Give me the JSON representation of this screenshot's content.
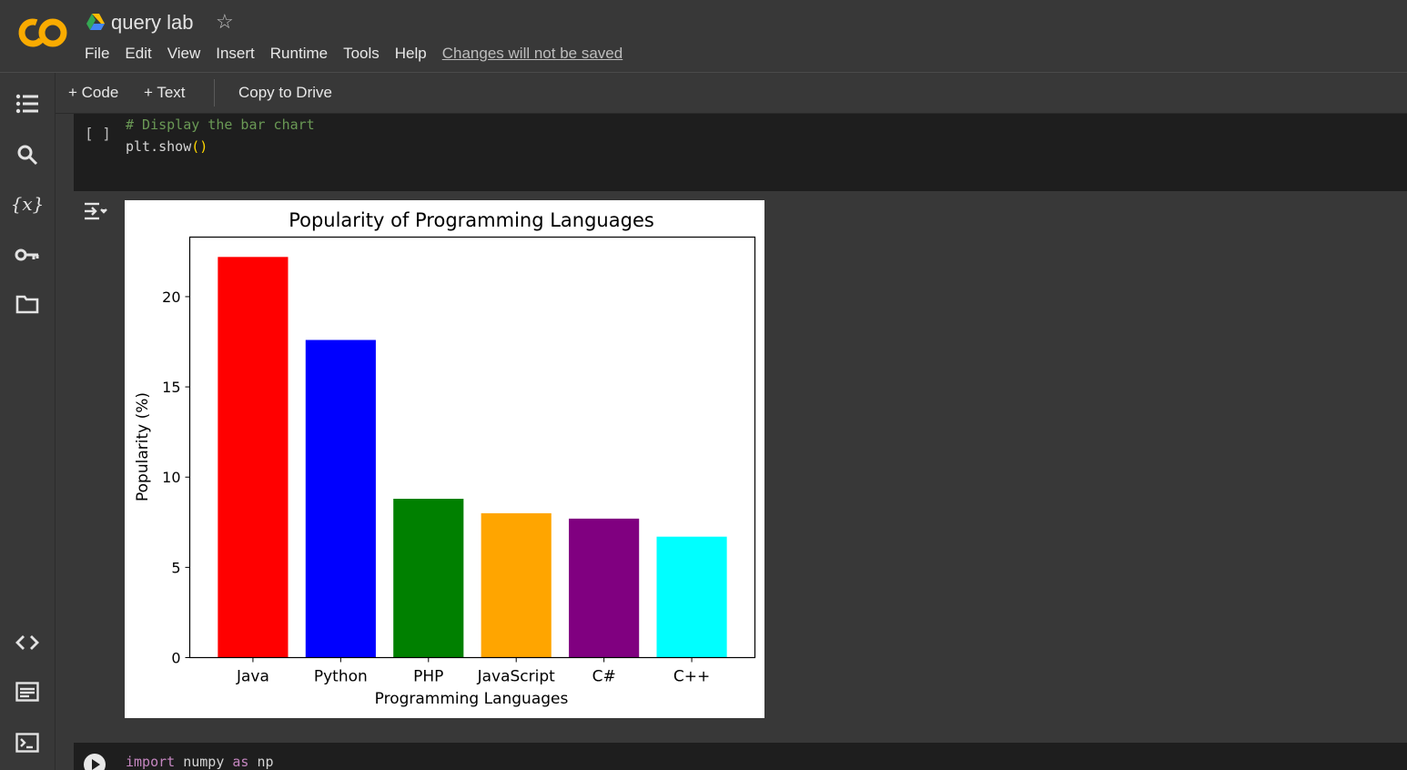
{
  "header": {
    "title": "query lab",
    "menu": [
      "File",
      "Edit",
      "View",
      "Insert",
      "Runtime",
      "Tools",
      "Help"
    ],
    "unsaved_notice": "Changes will not be saved",
    "brand_color": "#f9ab00"
  },
  "toolbar": {
    "code_label": "+ Code",
    "text_label": "+ Text",
    "copy_label": "Copy to Drive"
  },
  "rail": {
    "icons": [
      "toc-icon",
      "search-icon",
      "variables-icon",
      "key-icon",
      "folder-icon",
      "code-snippets-icon",
      "command-palette-icon",
      "terminal-icon"
    ]
  },
  "cells": {
    "cell1": {
      "bracket": "[ ]",
      "comment": "# Display the bar chart",
      "line2_prefix": "plt.show",
      "line2_parens": "()"
    },
    "cell2": {
      "kw1": "import",
      "name": " numpy ",
      "kw2": "as",
      "alias": " np"
    }
  },
  "chart_data": {
    "type": "bar",
    "title": "Popularity of Programming Languages",
    "xlabel": "Programming Languages",
    "ylabel": "Popularity (%)",
    "categories": [
      "Java",
      "Python",
      "PHP",
      "JavaScript",
      "C#",
      "C++"
    ],
    "values": [
      22.2,
      17.6,
      8.8,
      8.0,
      7.7,
      6.7
    ],
    "colors": [
      "#ff0000",
      "#0000ff",
      "#008000",
      "#ffa500",
      "#800080",
      "#00ffff"
    ],
    "yticks": [
      0,
      5,
      10,
      15,
      20
    ],
    "ylim": [
      0,
      23.3
    ],
    "grid": false,
    "legend": "none"
  }
}
